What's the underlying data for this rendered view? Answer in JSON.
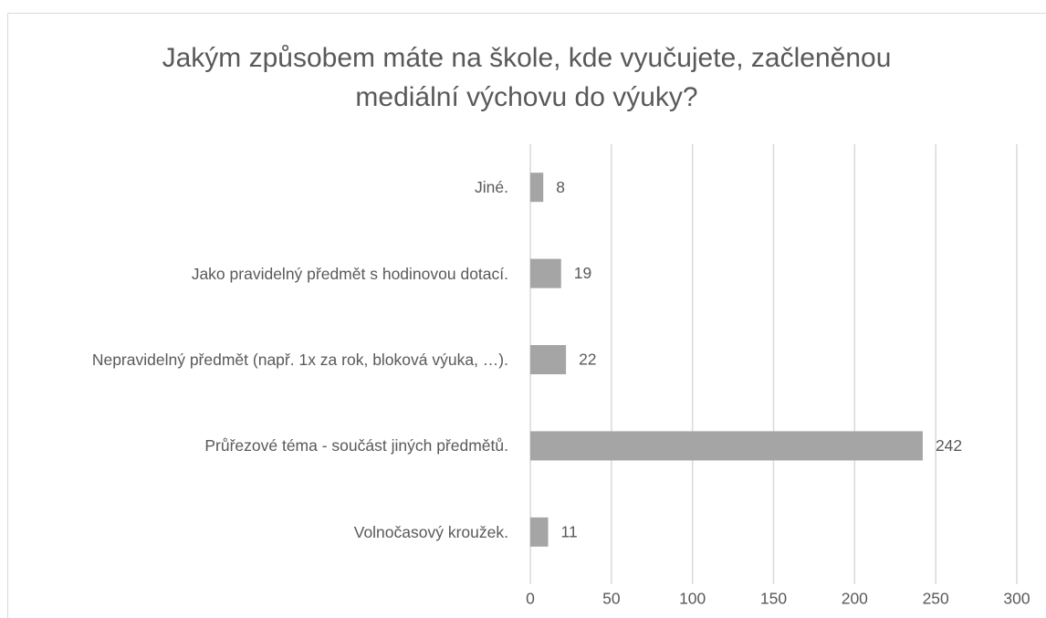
{
  "chart_data": {
    "type": "bar",
    "orientation": "horizontal",
    "title": "Jakým způsobem máte na škole, kde vyučujete, začleněnou mediální výchovu do výuky?",
    "categories": [
      "Jiné.",
      "Jako pravidelný předmět s hodinovou dotací.",
      "Nepravidelný předmět (např. 1x za rok, bloková výuka, …).",
      "Průřezové téma - součást jiných předmětů.",
      "Volnočasový kroužek."
    ],
    "values": [
      8,
      19,
      22,
      242,
      11
    ],
    "color": "#a5a5a5",
    "xlim": [
      0,
      300
    ],
    "xticks": [
      0,
      50,
      100,
      150,
      200,
      250,
      300
    ],
    "grid": true
  }
}
